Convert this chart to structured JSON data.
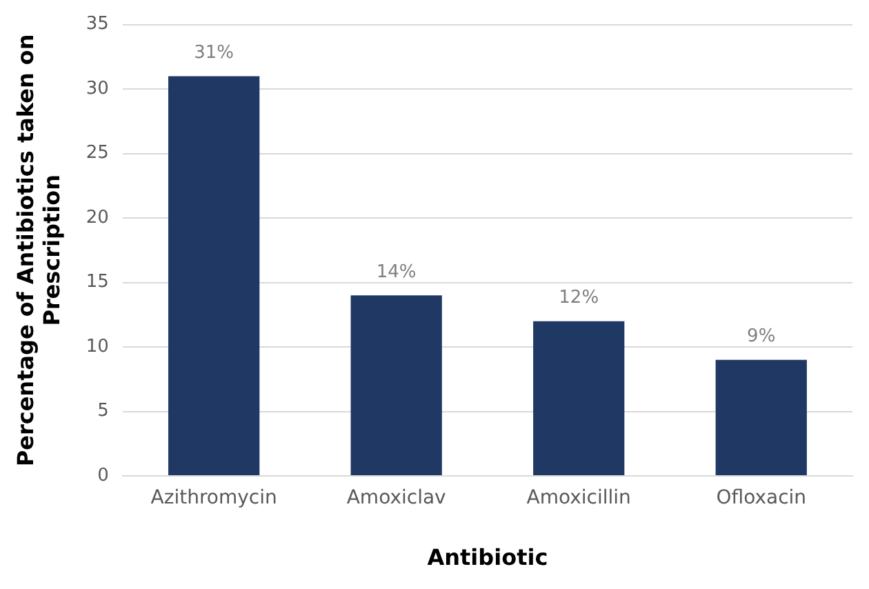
{
  "chart_data": {
    "type": "bar",
    "xlabel": "Antibiotic",
    "ylabel": "Percentage of Antibiotics taken on Prescription",
    "categories": [
      "Azithromycin",
      "Amoxiclav",
      "Amoxicillin",
      "Ofloxacin"
    ],
    "values": [
      31,
      14,
      12,
      9
    ],
    "color": "#203864",
    "value_labels": [
      "31%",
      "14%",
      "12%",
      "9%"
    ],
    "ylim": [
      0,
      35
    ],
    "yticks": [
      0,
      5,
      10,
      15,
      20,
      25,
      30,
      35
    ],
    "grid": "y",
    "legend": false
  }
}
